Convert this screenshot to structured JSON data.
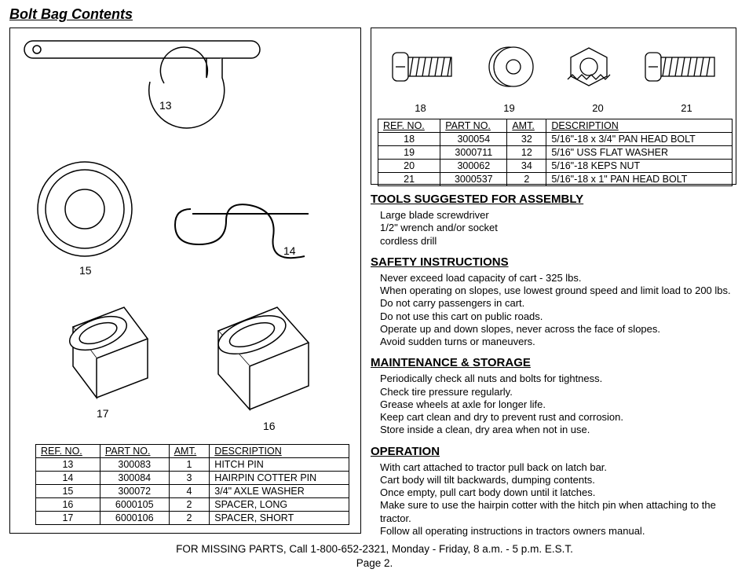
{
  "title": "Bolt Bag Contents",
  "left_parts": {
    "labels": {
      "p13": "13",
      "p14": "14",
      "p15": "15",
      "p16": "16",
      "p17": "17"
    },
    "table": {
      "headers": [
        "REF. NO.",
        "PART NO.",
        "AMT.",
        "DESCRIPTION"
      ],
      "rows": [
        [
          "13",
          "300083",
          "1",
          "HITCH PIN"
        ],
        [
          "14",
          "300084",
          "3",
          "HAIRPIN COTTER PIN"
        ],
        [
          "15",
          "300072",
          "4",
          "3/4\" AXLE WASHER"
        ],
        [
          "16",
          "6000105",
          "2",
          "SPACER, LONG"
        ],
        [
          "17",
          "6000106",
          "2",
          "SPACER, SHORT"
        ]
      ]
    }
  },
  "right_parts": {
    "labels": {
      "p18": "18",
      "p19": "19",
      "p20": "20",
      "p21": "21"
    },
    "table": {
      "headers": [
        "REF. NO.",
        "PART NO.",
        "AMT.",
        "DESCRIPTION"
      ],
      "rows": [
        [
          "18",
          "300054",
          "32",
          "5/16\"-18 x 3/4\" PAN HEAD BOLT"
        ],
        [
          "19",
          "3000711",
          "12",
          "5/16\" USS FLAT WASHER"
        ],
        [
          "20",
          "300062",
          "34",
          "5/16\"-18 KEPS NUT"
        ],
        [
          "21",
          "3000537",
          "2",
          "5/16\"-18 x 1\" PAN HEAD BOLT"
        ]
      ]
    }
  },
  "sections": {
    "tools": {
      "heading": "TOOLS SUGGESTED FOR ASSEMBLY",
      "lines": [
        "Large blade screwdriver",
        "1/2\" wrench and/or socket",
        "cordless drill"
      ]
    },
    "safety": {
      "heading": "SAFETY INSTRUCTIONS",
      "lines": [
        "Never exceed load capacity of cart - 325 lbs.",
        "When operating on slopes, use lowest ground speed and limit load to 200 lbs.",
        "Do not carry passengers in cart.",
        "Do not use this cart on public roads.",
        "Operate up and down slopes, never across the face of slopes.",
        "Avoid sudden turns or maneuvers."
      ]
    },
    "maintenance": {
      "heading": "MAINTENANCE & STORAGE",
      "lines": [
        "Periodically check all nuts and bolts for tightness.",
        "Check tire pressure regularly.",
        "Grease wheels at axle for longer life.",
        "Keep cart clean and dry to prevent rust and corrosion.",
        "Store inside a clean, dry area when not in use."
      ]
    },
    "operation": {
      "heading": "OPERATION",
      "lines": [
        "With cart attached to tractor pull back on latch bar.",
        "Cart body will tilt backwards, dumping contents.",
        "Once empty, pull cart body down until it latches.",
        "Make sure to use the hairpin cotter with the hitch pin when attaching to the tractor.",
        "Follow all operating instructions in tractors owners manual."
      ]
    }
  },
  "footer": {
    "line1": "FOR MISSING PARTS, Call 1-800-652-2321, Monday - Friday, 8 a.m. - 5 p.m. E.S.T.",
    "line2": "Page 2."
  },
  "style": {
    "stroke": "#000000",
    "stroke_width": 1.5,
    "fill": "#ffffff"
  }
}
